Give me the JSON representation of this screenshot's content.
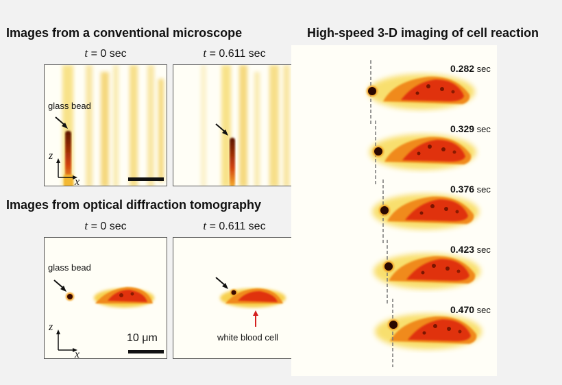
{
  "figure": {
    "left_top_heading": "Images from a conventional microscope",
    "left_bottom_heading": "Images from optical diffraction tomography",
    "right_heading": "High-speed 3-D imaging of cell reaction",
    "time_labels": [
      {
        "var": "t",
        "text": " = 0  sec"
      },
      {
        "var": "t",
        "text": " = 0.611  sec"
      }
    ],
    "annotations": {
      "glass_bead": "glass bead",
      "white_blood_cell": "white blood cell",
      "scale_bar": "10 μm",
      "axis_z": "z",
      "axis_x": "x"
    },
    "timeseries": [
      {
        "value": "0.282",
        "unit": "sec"
      },
      {
        "value": "0.329",
        "unit": "sec"
      },
      {
        "value": "0.376",
        "unit": "sec"
      },
      {
        "value": "0.423",
        "unit": "sec"
      },
      {
        "value": "0.470",
        "unit": "sec"
      }
    ],
    "colors": {
      "arrow_red": "#d42020",
      "cell_red": "#e03010",
      "cell_orange": "#f07a18",
      "stripe_yellow": "#f6d45a",
      "bead_dark": "#3a0a00"
    }
  }
}
